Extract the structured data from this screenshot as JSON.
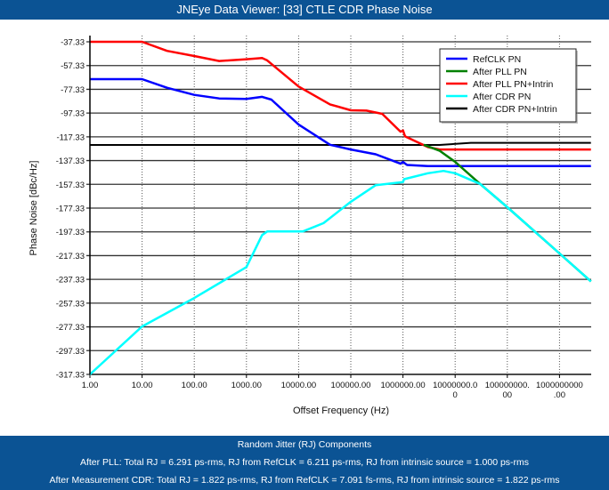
{
  "window": {
    "title": "JNEye Data Viewer: [33] CTLE CDR Phase Noise"
  },
  "footer": {
    "heading": "Random Jitter (RJ) Components",
    "line1": "After PLL: Total RJ = 6.291 ps-rms, RJ from RefCLK = 6.211 ps-rms, RJ from intrinsic source = 1.000 ps-rms",
    "line2": "After Measurement CDR: Total RJ = 1.822 ps-rms, RJ from RefCLK = 7.091 fs-rms, RJ from intrinsic source = 1.822 ps-rms"
  },
  "chart_data": {
    "type": "line",
    "title": "",
    "xlabel": "Offset Frequency (Hz)",
    "ylabel": "Phase Noise [dBc/Hz]",
    "x_scale": "log",
    "xlim": [
      1,
      4000000000
    ],
    "ylim": [
      -317.33,
      -37.33
    ],
    "x_ticks": [
      1,
      10,
      100,
      1000,
      10000,
      100000,
      1000000,
      10000000,
      100000000,
      1000000000
    ],
    "x_tick_labels": [
      "1.00",
      "10.00",
      "100.00",
      "1000.00",
      "10000.00",
      "100000.00",
      "1000000.00",
      "10000000.00",
      "100000000.00",
      "1000000000.00"
    ],
    "y_ticks": [
      -37.33,
      -57.33,
      -77.33,
      -97.33,
      -117.33,
      -137.33,
      -157.33,
      -177.33,
      -197.33,
      -217.33,
      -237.33,
      -257.33,
      -277.33,
      -297.33,
      -317.33
    ],
    "y_tick_labels": [
      "-37.33",
      "-57.33",
      "-77.33",
      "-97.33",
      "-117.33",
      "-137.33",
      "-157.33",
      "-177.33",
      "-197.33",
      "-217.33",
      "-237.33",
      "-257.33",
      "-277.33",
      "-297.33",
      "-317.33"
    ],
    "grid": true,
    "legend_position": "top-right",
    "series": [
      {
        "name": "RefCLK PN",
        "color": "#0000ff",
        "points": [
          [
            1,
            -68.8
          ],
          [
            10,
            -68.8
          ],
          [
            30,
            -76
          ],
          [
            100,
            -82
          ],
          [
            300,
            -85
          ],
          [
            1000,
            -85.5
          ],
          [
            2000,
            -83.7
          ],
          [
            3000,
            -86
          ],
          [
            10000,
            -107
          ],
          [
            40000,
            -124
          ],
          [
            100000,
            -128
          ],
          [
            300000,
            -132
          ],
          [
            900000,
            -140
          ],
          [
            1000000,
            -138.5
          ],
          [
            1200000,
            -141
          ],
          [
            3000000,
            -142
          ],
          [
            10000000,
            -142
          ],
          [
            4000000000,
            -142
          ]
        ]
      },
      {
        "name": "After PLL PN",
        "color": "#008000",
        "points": [
          [
            2500000,
            -124
          ],
          [
            5000000,
            -129
          ],
          [
            10000000,
            -138.4
          ],
          [
            30000000,
            -157
          ],
          [
            100000000,
            -176.6
          ],
          [
            1000000000,
            -215.5
          ],
          [
            4000000000,
            -239
          ]
        ]
      },
      {
        "name": "After PLL PN+Intrin",
        "color": "#ff0000",
        "points": [
          [
            1,
            -37.33
          ],
          [
            10,
            -37.33
          ],
          [
            30,
            -45
          ],
          [
            100,
            -49.3
          ],
          [
            300,
            -53.5
          ],
          [
            1000,
            -52
          ],
          [
            2000,
            -51
          ],
          [
            2500,
            -53
          ],
          [
            10000,
            -75
          ],
          [
            40000,
            -90
          ],
          [
            100000,
            -95
          ],
          [
            200000,
            -95.3
          ],
          [
            400000,
            -98
          ],
          [
            900000,
            -113
          ],
          [
            1000000,
            -112
          ],
          [
            1100000,
            -117
          ],
          [
            3000000,
            -126
          ],
          [
            5000000,
            -128
          ],
          [
            4000000000,
            -128
          ]
        ]
      },
      {
        "name": "After CDR PN",
        "color": "#00ffff",
        "points": [
          [
            1,
            -317.33
          ],
          [
            10,
            -277
          ],
          [
            100,
            -253
          ],
          [
            1000,
            -227
          ],
          [
            2000,
            -200
          ],
          [
            2500,
            -197
          ],
          [
            12000,
            -197
          ],
          [
            30000,
            -190
          ],
          [
            100000,
            -172
          ],
          [
            300000,
            -158
          ],
          [
            1000000,
            -155.5
          ],
          [
            1050000,
            -153
          ],
          [
            3000000,
            -148
          ],
          [
            6000000,
            -146
          ],
          [
            10000000,
            -148
          ],
          [
            30000000,
            -157
          ],
          [
            100000000,
            -176.6
          ],
          [
            1000000000,
            -215.5
          ],
          [
            4000000000,
            -239
          ]
        ]
      },
      {
        "name": "After CDR PN+Intrin",
        "color": "#000000",
        "points": [
          [
            1,
            -124.2
          ],
          [
            5000000,
            -124.2
          ],
          [
            20000000,
            -122.4
          ],
          [
            4000000000,
            -122.4
          ]
        ]
      }
    ]
  }
}
